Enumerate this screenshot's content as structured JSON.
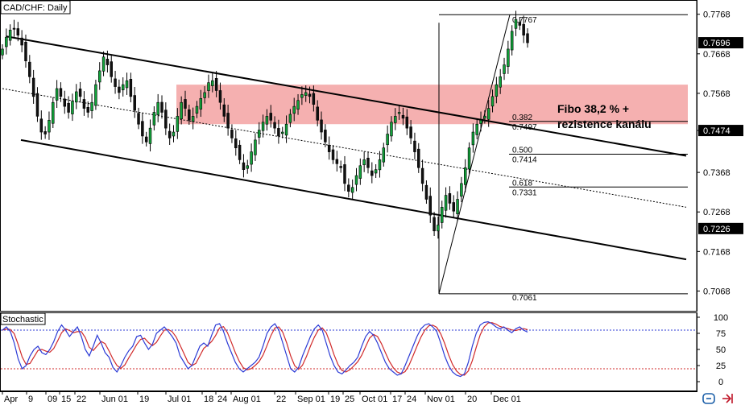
{
  "chart_data": {
    "type": "candlestick",
    "title": "CAD/CHF: Daily",
    "ylim": [
      0.702,
      0.78
    ],
    "price_ticks": [
      "0.7768",
      "0.7668",
      "0.7568",
      "0.7474",
      "0.7368",
      "0.7268",
      "0.7168",
      "0.7068"
    ],
    "price_tick_values": [
      0.7768,
      0.7668,
      0.7568,
      0.7474,
      0.7368,
      0.7268,
      0.7168,
      0.7068
    ],
    "price_labels": [
      {
        "text": "0.7696",
        "value": 0.7696
      },
      {
        "text": "0.7474",
        "value": 0.7474
      },
      {
        "text": "0.7226",
        "value": 0.7226
      }
    ],
    "x_ticks": [
      "Apr",
      "9",
      "09",
      "15",
      "22",
      "Jun 01",
      "19",
      "Jul 01",
      "18",
      "24",
      "Aug 01",
      "22",
      "Sep 01",
      "19",
      "25",
      "Oct 01",
      "17",
      "24",
      "Nov 01",
      "20",
      "Dec 01"
    ],
    "annotation": {
      "line1": "Fibo 38,2 % +",
      "line2": "rezistence kanálu"
    },
    "resistance_zone": [
      0.749,
      0.759
    ],
    "fibonacci": {
      "swing_low": 0.7061,
      "swing_high": 0.7767,
      "levels": [
        {
          "ratio": "0.382",
          "price": "0.7497"
        },
        {
          "ratio": "0.500",
          "price": "0.7414"
        },
        {
          "ratio": "0.618",
          "price": "0.7331"
        }
      ],
      "high_label": "0.7767",
      "low_label": "0.7061"
    },
    "channel": {
      "upper": [
        [
          0.7712,
          0.741
        ]
      ],
      "lower": [
        [
          0.745,
          0.7148
        ]
      ],
      "mid": [
        [
          0.758,
          0.728
        ]
      ]
    },
    "closes": [
      0.768,
      0.771,
      0.7728,
      0.773,
      0.7715,
      0.769,
      0.765,
      0.761,
      0.756,
      0.751,
      0.747,
      0.7465,
      0.75,
      0.7545,
      0.758,
      0.756,
      0.7535,
      0.752,
      0.7548,
      0.7572,
      0.756,
      0.753,
      0.752,
      0.7545,
      0.759,
      0.7625,
      0.766,
      0.764,
      0.761,
      0.7585,
      0.757,
      0.759,
      0.76,
      0.756,
      0.7525,
      0.749,
      0.746,
      0.7445,
      0.748,
      0.752,
      0.7545,
      0.752,
      0.748,
      0.7455,
      0.747,
      0.751,
      0.7545,
      0.753,
      0.75,
      0.751,
      0.7535,
      0.7555,
      0.757,
      0.7595,
      0.76,
      0.7575,
      0.7545,
      0.751,
      0.748,
      0.7455,
      0.743,
      0.74,
      0.7375,
      0.7385,
      0.742,
      0.745,
      0.7475,
      0.7495,
      0.751,
      0.75,
      0.748,
      0.746,
      0.747,
      0.749,
      0.7515,
      0.7535,
      0.755,
      0.7565,
      0.757,
      0.756,
      0.754,
      0.75,
      0.747,
      0.7445,
      0.742,
      0.74,
      0.739,
      0.738,
      0.734,
      0.732,
      0.733,
      0.736,
      0.7385,
      0.74,
      0.738,
      0.736,
      0.7375,
      0.74,
      0.743,
      0.7465,
      0.7495,
      0.751,
      0.752,
      0.7505,
      0.748,
      0.7455,
      0.742,
      0.738,
      0.734,
      0.73,
      0.726,
      0.722,
      0.7235,
      0.728,
      0.731,
      0.729,
      0.727,
      0.73,
      0.734,
      0.738,
      0.743,
      0.747,
      0.749,
      0.75,
      0.751,
      0.753,
      0.756,
      0.759,
      0.761,
      0.764,
      0.768,
      0.7725,
      0.7755,
      0.774,
      0.7715,
      0.7696
    ],
    "stochastic": {
      "title": "Stochastic",
      "ylim": [
        0,
        100
      ],
      "ticks": [
        "100",
        "75",
        "50",
        "25",
        "0"
      ],
      "tick_values": [
        100,
        75,
        50,
        25,
        0
      ],
      "upper_level": 80,
      "lower_level": 20,
      "k": [
        80,
        85,
        78,
        60,
        35,
        20,
        25,
        40,
        50,
        55,
        45,
        42,
        50,
        62,
        78,
        88,
        80,
        70,
        78,
        85,
        70,
        50,
        40,
        55,
        72,
        60,
        45,
        38,
        22,
        15,
        25,
        38,
        48,
        55,
        70,
        72,
        60,
        50,
        58,
        75,
        80,
        85,
        78,
        70,
        60,
        40,
        30,
        20,
        25,
        40,
        55,
        60,
        55,
        72,
        88,
        90,
        78,
        60,
        45,
        30,
        20,
        15,
        20,
        25,
        30,
        38,
        55,
        75,
        85,
        90,
        80,
        60,
        40,
        20,
        15,
        22,
        40,
        55,
        70,
        82,
        88,
        80,
        60,
        40,
        25,
        15,
        12,
        18,
        25,
        30,
        38,
        55,
        70,
        78,
        72,
        60,
        45,
        30,
        20,
        15,
        10,
        12,
        25,
        40,
        55,
        70,
        82,
        88,
        90,
        85,
        78,
        60,
        40,
        25,
        15,
        10,
        8,
        12,
        30,
        55,
        75,
        88,
        92,
        93,
        90,
        85,
        82,
        85,
        80,
        76,
        82,
        85,
        80,
        77
      ]
    }
  }
}
